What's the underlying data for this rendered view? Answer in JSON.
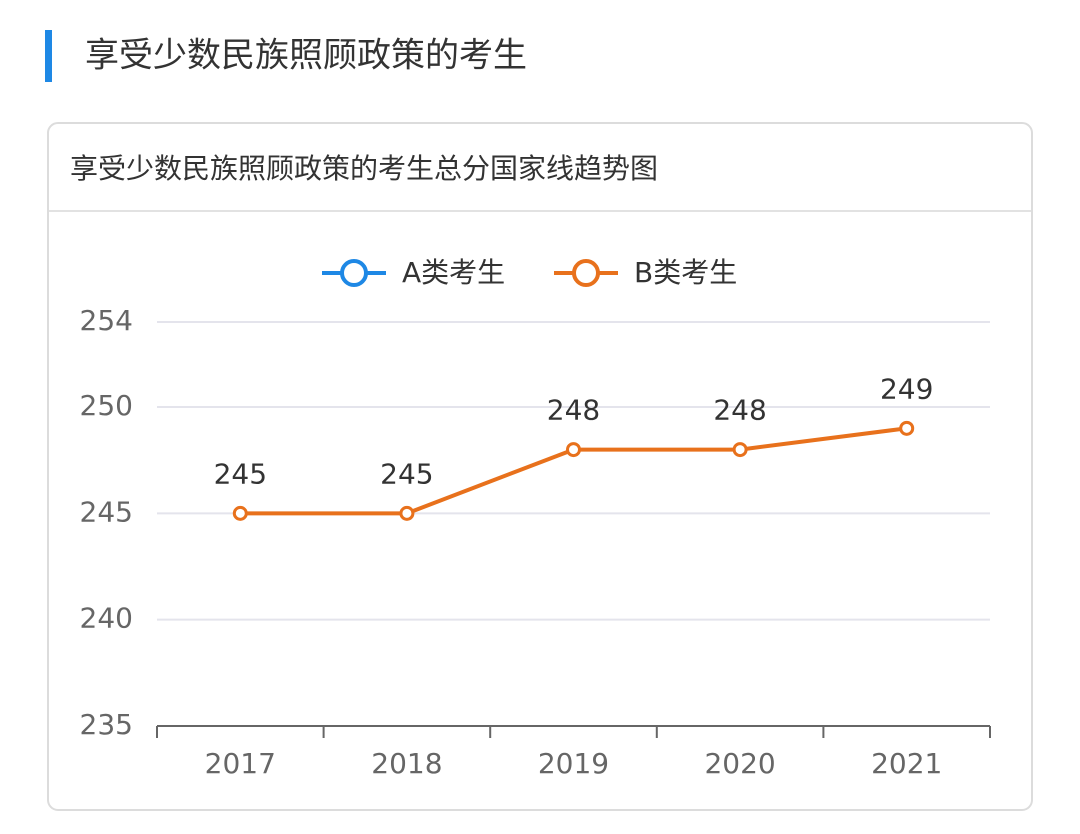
{
  "header": {
    "title": "享受少数民族照顾政策的考生"
  },
  "chart_data": {
    "type": "line",
    "title": "享受少数民族照顾政策的考生总分国家线趋势图",
    "categories": [
      "2017",
      "2018",
      "2019",
      "2020",
      "2021"
    ],
    "series": [
      {
        "name": "A类考生",
        "color": "#1e88e5",
        "values": [
          null,
          null,
          null,
          null,
          null
        ]
      },
      {
        "name": "B类考生",
        "color": "#e8711c",
        "values": [
          245,
          245,
          248,
          248,
          249
        ]
      }
    ],
    "ylim": [
      235,
      254
    ],
    "yticks": [
      235,
      240,
      245,
      250,
      254
    ],
    "grid": true,
    "legend": "top"
  }
}
